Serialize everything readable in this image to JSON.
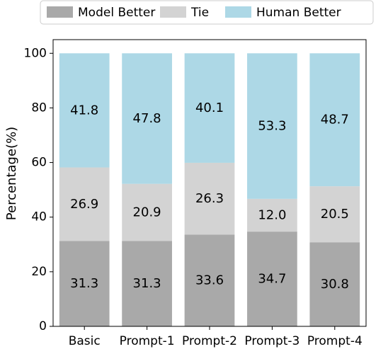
{
  "chart_data": {
    "type": "bar",
    "stacked": true,
    "categories": [
      "Basic",
      "Prompt-1",
      "Prompt-2",
      "Prompt-3",
      "Prompt-4"
    ],
    "series": [
      {
        "name": "Model Better",
        "color": "#a9a9a9",
        "values": [
          31.3,
          31.3,
          33.6,
          34.7,
          30.8
        ]
      },
      {
        "name": "Tie",
        "color": "#d3d3d3",
        "values": [
          26.9,
          20.9,
          26.3,
          12.0,
          20.5
        ]
      },
      {
        "name": "Human Better",
        "color": "#add8e6",
        "values": [
          41.8,
          47.8,
          40.1,
          53.3,
          48.7
        ]
      }
    ],
    "data_labels": [
      [
        "31.3",
        "31.3",
        "33.6",
        "34.7",
        "30.8"
      ],
      [
        "26.9",
        "20.9",
        "26.3",
        "12.0",
        "20.5"
      ],
      [
        "41.8",
        "47.8",
        "40.1",
        "53.3",
        "48.7"
      ]
    ],
    "ylabel": "Percentage(%)",
    "xlabel": "",
    "ylim": [
      0,
      105
    ],
    "yticks": [
      0,
      20,
      40,
      60,
      80,
      100
    ],
    "grid": false,
    "legend_position": "top"
  }
}
